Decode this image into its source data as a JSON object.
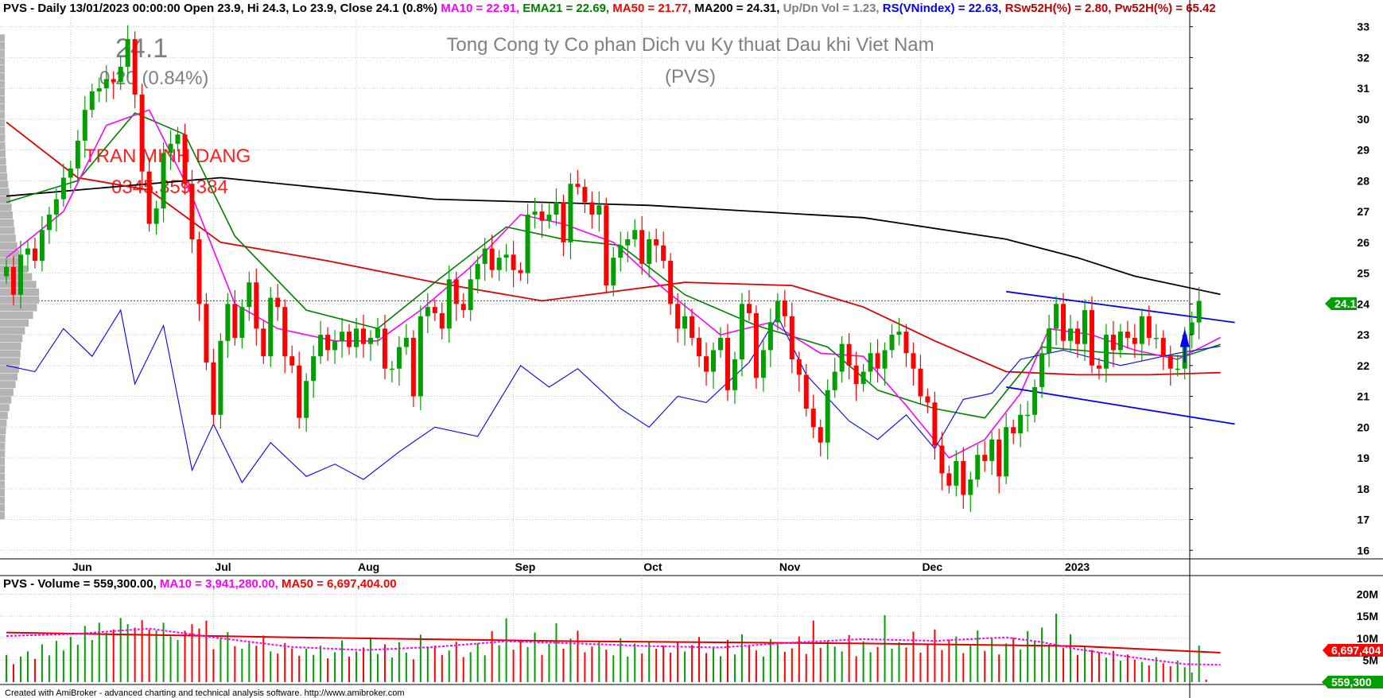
{
  "header": {
    "summary": "PVS - Daily 13/01/2023 00:00:00 Open 23.9, Hi 24.3, Lo 23.9, Close 24.1 (0.8%)",
    "ma10": "MA10 = 22.91,",
    "ema21": "EMA21 = 22.69,",
    "ma50": "MA50 = 21.77,",
    "ma200": "MA200 = 24.31,",
    "updn": "Up/Dn Vol = 1.23,",
    "rs": "RS(VNindex) = 22.63,",
    "rsw": "RSw52H(%) = 2.80,",
    "pw": "Pw52H(%) = 65.42"
  },
  "volume_header": {
    "label": "PVS - Volume = 559,300.00,",
    "ma10": "MA10 = 3,941,280.00,",
    "ma50": "MA50 = 6,697,404.00"
  },
  "watermark": {
    "price": "24.1",
    "change": "0.20 (0.84%)",
    "company": "Tong Cong ty Co phan Dich vu Ky thuat Dau khi Viet Nam",
    "ticker": "(PVS)",
    "author": "TRAN MINH DANG",
    "phone": "0345.359.384"
  },
  "credit": "Created with AmiBroker - advanced charting and technical analysis software. http://www.amibroker.com",
  "badges": {
    "price": "24.1",
    "ma50_volume": "6,697,404",
    "volume": "559,300"
  },
  "colors": {
    "up": "#00a000",
    "down": "#ff0000",
    "ma10": "#ff00ff",
    "ema21": "#008000",
    "ma50": "#e00000",
    "ma200": "#000000",
    "rs": "#0000ff",
    "channel": "#0000ff",
    "badge": "#00a000",
    "badge_red": "#ff0000"
  },
  "chart_data": {
    "type": "candlestick",
    "ylim": [
      15.8,
      33.3
    ],
    "y_ticks": [
      16,
      17,
      18,
      19,
      20,
      21,
      22,
      23,
      24,
      25,
      26,
      27,
      28,
      29,
      30,
      31,
      32,
      33
    ],
    "month_labels": [
      {
        "label": "Jun",
        "bar": 9
      },
      {
        "label": "Jul",
        "bar": 29
      },
      {
        "label": "Aug",
        "bar": 49
      },
      {
        "label": "Sep",
        "bar": 71
      },
      {
        "label": "Oct",
        "bar": 89
      },
      {
        "label": "Nov",
        "bar": 108
      },
      {
        "label": "Dec",
        "bar": 128
      },
      {
        "label": "2023",
        "bar": 148
      }
    ],
    "closes": [
      25.2,
      24.3,
      25.6,
      25.8,
      25.4,
      26.4,
      26.9,
      27.4,
      28.1,
      28.4,
      29.3,
      30.3,
      30.9,
      31.0,
      31.3,
      31.2,
      31.7,
      32.6,
      30.8,
      28.3,
      26.6,
      27.1,
      28.9,
      29.2,
      29.5,
      27.9,
      26.1,
      24.0,
      22.1,
      20.4,
      22.8,
      24.0,
      22.9,
      23.9,
      24.7,
      23.2,
      22.3,
      24.2,
      23.9,
      22.3,
      22.0,
      20.3,
      21.5,
      22.3,
      23.0,
      22.5,
      22.8,
      23.1,
      22.6,
      23.2,
      22.7,
      22.9,
      23.2,
      21.9,
      21.9,
      22.6,
      22.9,
      21.0,
      23.6,
      23.9,
      23.7,
      23.2,
      24.8,
      24.0,
      23.8,
      24.8,
      25.3,
      25.8,
      25.1,
      25.5,
      25.6,
      25.1,
      25.0,
      26.9,
      27.0,
      26.7,
      26.9,
      27.3,
      26.0,
      27.9,
      27.8,
      27.3,
      26.9,
      27.2,
      24.6,
      25.5,
      25.9,
      26.1,
      26.4,
      25.3,
      26.1,
      25.9,
      25.4,
      24.0,
      23.2,
      23.6,
      22.9,
      22.3,
      21.8,
      22.5,
      22.9,
      21.2,
      22.2,
      24.0,
      23.7,
      21.6,
      22.5,
      23.4,
      24.1,
      23.6,
      22.2,
      21.7,
      20.6,
      20.0,
      19.5,
      21.2,
      21.8,
      22.7,
      22.0,
      21.4,
      21.8,
      22.4,
      21.9,
      22.5,
      23.0,
      23.1,
      22.4,
      21.9,
      21.0,
      20.8,
      19.4,
      18.5,
      18.1,
      18.9,
      17.8,
      18.3,
      19.1,
      18.9,
      19.6,
      18.4,
      20.0,
      19.8,
      20.4,
      20.4,
      21.3,
      22.4,
      23.2,
      24.0,
      22.8,
      23.2,
      22.7,
      23.8,
      22.0,
      21.9,
      23.0,
      22.5,
      23.1,
      22.9,
      22.7,
      23.6,
      22.9,
      22.9,
      22.3,
      21.9,
      21.9,
      23.0,
      23.4,
      24.1
    ],
    "ma200_points": [
      [
        0,
        27.5
      ],
      [
        30,
        28.1
      ],
      [
        60,
        27.4
      ],
      [
        90,
        27.2
      ],
      [
        120,
        26.8
      ],
      [
        140,
        26.1
      ],
      [
        150,
        25.5
      ],
      [
        158,
        24.9
      ],
      [
        170,
        24.31
      ]
    ],
    "ma50_points": [
      [
        0,
        29.9
      ],
      [
        10,
        28.1
      ],
      [
        20,
        27.7
      ],
      [
        30,
        26.0
      ],
      [
        45,
        25.4
      ],
      [
        60,
        24.7
      ],
      [
        75,
        24.1
      ],
      [
        95,
        24.7
      ],
      [
        110,
        24.6
      ],
      [
        120,
        23.9
      ],
      [
        130,
        22.8
      ],
      [
        140,
        21.8
      ],
      [
        150,
        21.7
      ],
      [
        160,
        21.7
      ],
      [
        170,
        21.77
      ]
    ],
    "ema21_points": [
      [
        0,
        27.3
      ],
      [
        10,
        28.0
      ],
      [
        18,
        30.2
      ],
      [
        25,
        29.5
      ],
      [
        32,
        26.2
      ],
      [
        42,
        23.8
      ],
      [
        52,
        23.2
      ],
      [
        60,
        24.7
      ],
      [
        70,
        26.5
      ],
      [
        78,
        26.1
      ],
      [
        86,
        25.9
      ],
      [
        95,
        24.3
      ],
      [
        105,
        23.3
      ],
      [
        115,
        22.6
      ],
      [
        122,
        21.2
      ],
      [
        130,
        20.6
      ],
      [
        137,
        20.3
      ],
      [
        145,
        22.6
      ],
      [
        155,
        22.4
      ],
      [
        165,
        22.3
      ],
      [
        170,
        22.69
      ]
    ],
    "ma10_points": [
      [
        0,
        25.5
      ],
      [
        8,
        27.0
      ],
      [
        14,
        29.8
      ],
      [
        20,
        30.3
      ],
      [
        26,
        27.5
      ],
      [
        32,
        24.0
      ],
      [
        38,
        23.2
      ],
      [
        46,
        22.8
      ],
      [
        52,
        22.8
      ],
      [
        58,
        23.8
      ],
      [
        65,
        25.2
      ],
      [
        72,
        26.9
      ],
      [
        78,
        26.6
      ],
      [
        85,
        26.0
      ],
      [
        92,
        24.5
      ],
      [
        100,
        23.0
      ],
      [
        107,
        23.4
      ],
      [
        114,
        22.4
      ],
      [
        120,
        22.3
      ],
      [
        126,
        20.7
      ],
      [
        132,
        19.0
      ],
      [
        137,
        19.6
      ],
      [
        142,
        21.1
      ],
      [
        146,
        23.2
      ],
      [
        152,
        23.0
      ],
      [
        158,
        22.5
      ],
      [
        164,
        22.2
      ],
      [
        170,
        22.91
      ]
    ],
    "rs_points": [
      [
        0,
        22.0
      ],
      [
        4,
        21.8
      ],
      [
        8,
        23.2
      ],
      [
        12,
        22.3
      ],
      [
        16,
        23.8
      ],
      [
        18,
        21.4
      ],
      [
        22,
        23.3
      ],
      [
        26,
        18.6
      ],
      [
        29,
        20.1
      ],
      [
        33,
        18.2
      ],
      [
        37,
        19.5
      ],
      [
        42,
        18.4
      ],
      [
        46,
        18.8
      ],
      [
        50,
        18.3
      ],
      [
        55,
        19.2
      ],
      [
        60,
        20.0
      ],
      [
        66,
        19.7
      ],
      [
        72,
        22.0
      ],
      [
        76,
        21.3
      ],
      [
        80,
        21.9
      ],
      [
        86,
        20.6
      ],
      [
        90,
        20.0
      ],
      [
        94,
        21.0
      ],
      [
        98,
        20.8
      ],
      [
        104,
        22.1
      ],
      [
        108,
        23.6
      ],
      [
        112,
        21.7
      ],
      [
        118,
        20.2
      ],
      [
        122,
        19.6
      ],
      [
        126,
        20.4
      ],
      [
        130,
        19.3
      ],
      [
        134,
        20.9
      ],
      [
        138,
        21.1
      ],
      [
        142,
        22.2
      ],
      [
        148,
        22.5
      ],
      [
        156,
        22.0
      ],
      [
        164,
        22.4
      ],
      [
        170,
        22.63
      ]
    ],
    "channel_upper": [
      [
        140,
        24.4
      ],
      [
        172,
        23.4
      ]
    ],
    "channel_lower": [
      [
        140,
        21.3
      ],
      [
        172,
        20.1
      ]
    ],
    "volumes": [
      6.2,
      4.1,
      5.8,
      7.0,
      5.3,
      8.6,
      6.1,
      9.4,
      7.2,
      10.3,
      8.5,
      12.8,
      9.6,
      13.5,
      11.2,
      12.0,
      14.6,
      13.2,
      12.4,
      14.1,
      12.0,
      11.8,
      13.5,
      10.4,
      9.6,
      11.7,
      13.2,
      12.2,
      14.0,
      7.5,
      9.8,
      11.4,
      8.2,
      7.6,
      9.0,
      8.3,
      10.6,
      7.0,
      6.5,
      8.9,
      7.7,
      6.0,
      7.6,
      6.2,
      8.3,
      5.4,
      6.8,
      9.5,
      5.8,
      7.0,
      7.9,
      10.2,
      6.4,
      8.6,
      5.6,
      9.1,
      6.7,
      5.2,
      10.8,
      7.9,
      8.3,
      6.2,
      7.2,
      9.2,
      5.7,
      6.8,
      8.9,
      6.1,
      11.6,
      8.4,
      14.5,
      7.4,
      9.6,
      8.0,
      11.3,
      6.2,
      8.7,
      13.4,
      7.6,
      9.9,
      11.7,
      6.8,
      8.1,
      9.2,
      7.4,
      6.1,
      10.0,
      5.8,
      8.8,
      6.5,
      9.2,
      7.6,
      8.3,
      6.7,
      9.1,
      7.0,
      8.4,
      10.3,
      6.6,
      7.8,
      5.9,
      9.6,
      6.3,
      10.9,
      8.4,
      7.2,
      5.8,
      9.8,
      8.7,
      6.9,
      7.7,
      10.4,
      6.4,
      14.0,
      7.8,
      9.5,
      8.1,
      7.0,
      10.7,
      5.9,
      9.3,
      6.8,
      8.0,
      15.2,
      7.6,
      9.1,
      7.9,
      11.5,
      6.7,
      8.5,
      12.0,
      7.3,
      9.7,
      10.4,
      6.6,
      8.3,
      11.8,
      7.1,
      9.9,
      6.3,
      8.8,
      10.1,
      7.4,
      11.6,
      9.3,
      12.4,
      8.6,
      15.6,
      7.8,
      10.9,
      6.2,
      8.1,
      7.3,
      6.8,
      5.6,
      7.1,
      4.9,
      6.3,
      5.1,
      4.6,
      3.8,
      5.7,
      4.3,
      3.6,
      4.9,
      3.4,
      2.2,
      8.3,
      0.56
    ],
    "vol_ylim": [
      0,
      21
    ],
    "vol_ticks": [
      {
        "v": 5,
        "label": "5M"
      },
      {
        "v": 10,
        "label": "10M"
      },
      {
        "v": 15,
        "label": "15M"
      },
      {
        "v": 20,
        "label": "20M"
      }
    ],
    "vol_ma50_points": [
      [
        0,
        11.3
      ],
      [
        40,
        10.2
      ],
      [
        80,
        9.3
      ],
      [
        120,
        8.8
      ],
      [
        150,
        8.2
      ],
      [
        170,
        6.7
      ]
    ],
    "vol_ma10_points": [
      [
        0,
        10.5
      ],
      [
        10,
        11.0
      ],
      [
        20,
        12.2
      ],
      [
        30,
        10.0
      ],
      [
        40,
        8.0
      ],
      [
        50,
        7.3
      ],
      [
        60,
        8.0
      ],
      [
        70,
        9.3
      ],
      [
        80,
        8.8
      ],
      [
        90,
        8.2
      ],
      [
        100,
        7.9
      ],
      [
        110,
        9.0
      ],
      [
        120,
        9.8
      ],
      [
        130,
        9.4
      ],
      [
        140,
        10.2
      ],
      [
        145,
        9.1
      ],
      [
        150,
        7.5
      ],
      [
        158,
        5.6
      ],
      [
        165,
        4.1
      ],
      [
        170,
        3.94
      ]
    ]
  }
}
